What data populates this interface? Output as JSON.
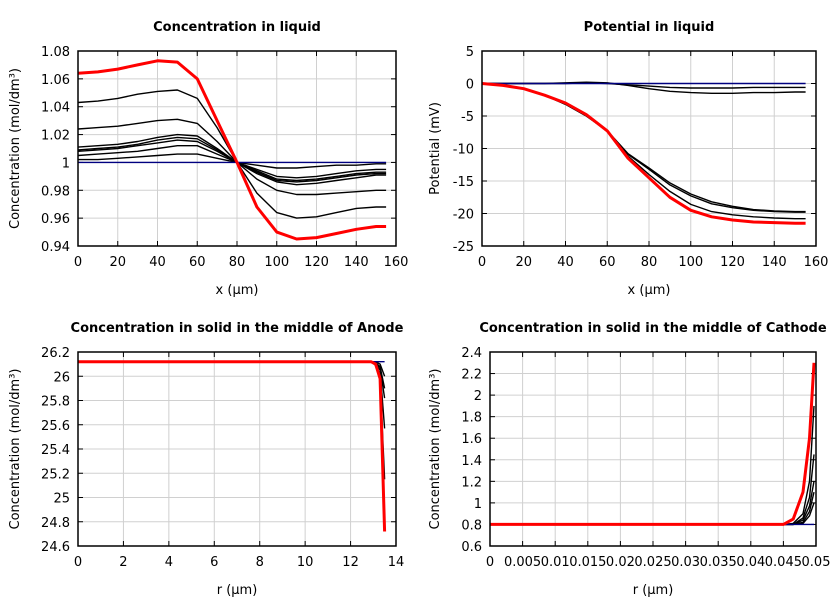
{
  "chart_data": [
    {
      "type": "line",
      "title": "Concentration in liquid",
      "xlabel": "x (µm)",
      "ylabel": "Concentration (mol/dm³)",
      "xlim": [
        0,
        160
      ],
      "ylim": [
        0.94,
        1.08
      ],
      "xticks": [
        "0",
        "20",
        "40",
        "60",
        "80",
        "100",
        "120",
        "140",
        "160"
      ],
      "yticks": [
        "0.94",
        "0.96",
        "0.98",
        "1",
        "1.02",
        "1.04",
        "1.06",
        "1.08"
      ],
      "grid": true,
      "x": [
        0,
        10,
        20,
        30,
        40,
        50,
        60,
        70,
        80,
        90,
        100,
        110,
        120,
        130,
        140,
        150,
        155
      ],
      "series": [
        {
          "color": "#000000",
          "values": [
            1.043,
            1.044,
            1.046,
            1.049,
            1.051,
            1.052,
            1.046,
            1.025,
            1.0,
            0.978,
            0.964,
            0.96,
            0.961,
            0.964,
            0.967,
            0.968,
            0.968
          ]
        },
        {
          "color": "#000000",
          "values": [
            1.024,
            1.025,
            1.026,
            1.028,
            1.03,
            1.031,
            1.028,
            1.015,
            1.0,
            0.988,
            0.98,
            0.977,
            0.977,
            0.978,
            0.979,
            0.98,
            0.98
          ]
        },
        {
          "color": "#000000",
          "values": [
            1.011,
            1.012,
            1.013,
            1.015,
            1.018,
            1.02,
            1.019,
            1.01,
            1.0,
            0.992,
            0.986,
            0.984,
            0.985,
            0.987,
            0.989,
            0.991,
            0.991
          ]
        },
        {
          "color": "#000000",
          "values": [
            1.009,
            1.01,
            1.011,
            1.013,
            1.016,
            1.018,
            1.017,
            1.009,
            1.0,
            0.993,
            0.987,
            0.986,
            0.987,
            0.989,
            0.991,
            0.992,
            0.992
          ]
        },
        {
          "color": "#000000",
          "values": [
            1.008,
            1.009,
            1.01,
            1.012,
            1.014,
            1.016,
            1.015,
            1.008,
            1.0,
            0.994,
            0.988,
            0.987,
            0.988,
            0.99,
            0.992,
            0.993,
            0.993
          ]
        },
        {
          "color": "#000000",
          "values": [
            1.005,
            1.006,
            1.007,
            1.008,
            1.01,
            1.012,
            1.012,
            1.006,
            1.0,
            0.995,
            0.99,
            0.989,
            0.99,
            0.992,
            0.994,
            0.995,
            0.995
          ]
        },
        {
          "color": "#000000",
          "values": [
            1.002,
            1.002,
            1.003,
            1.004,
            1.005,
            1.006,
            1.006,
            1.003,
            1.0,
            0.998,
            0.996,
            0.996,
            0.997,
            0.998,
            0.998,
            0.999,
            0.999
          ]
        },
        {
          "color": "#000080",
          "values": [
            1,
            1,
            1,
            1,
            1,
            1,
            1,
            1,
            1,
            1,
            1,
            1,
            1,
            1,
            1,
            1,
            1
          ]
        },
        {
          "color": "#ff0000",
          "values": [
            1.064,
            1.065,
            1.067,
            1.07,
            1.073,
            1.072,
            1.06,
            1.03,
            1.0,
            0.968,
            0.95,
            0.945,
            0.946,
            0.949,
            0.952,
            0.954,
            0.954
          ]
        }
      ]
    },
    {
      "type": "line",
      "title": "Potential in liquid",
      "xlabel": "x (µm)",
      "ylabel": "Potential (mV)",
      "xlim": [
        0,
        160
      ],
      "ylim": [
        -25,
        5
      ],
      "xticks": [
        "0",
        "20",
        "40",
        "60",
        "80",
        "100",
        "120",
        "140",
        "160"
      ],
      "yticks": [
        "-25",
        "-20",
        "-15",
        "-10",
        "-5",
        "0",
        "5"
      ],
      "grid": true,
      "x": [
        0,
        10,
        20,
        30,
        40,
        50,
        60,
        70,
        80,
        90,
        100,
        110,
        120,
        130,
        140,
        150,
        155
      ],
      "series": [
        {
          "color": "#000000",
          "values": [
            0,
            -0.3,
            -0.8,
            -1.8,
            -3.2,
            -5.0,
            -7.3,
            -10.8,
            -13.0,
            -15.3,
            -17.0,
            -18.2,
            -18.9,
            -19.4,
            -19.6,
            -19.7,
            -19.7
          ]
        },
        {
          "color": "#000000",
          "values": [
            0,
            -0.3,
            -0.8,
            -1.8,
            -3.2,
            -5.0,
            -7.3,
            -10.9,
            -13.2,
            -15.6,
            -17.3,
            -18.5,
            -19.1,
            -19.5,
            -19.7,
            -19.8,
            -19.8
          ]
        },
        {
          "color": "#000000",
          "values": [
            0,
            -0.3,
            -0.8,
            -1.8,
            -3.1,
            -4.9,
            -7.3,
            -11.2,
            -14.0,
            -16.6,
            -18.6,
            -19.7,
            -20.2,
            -20.5,
            -20.7,
            -20.8,
            -20.8
          ]
        },
        {
          "color": "#000000",
          "values": [
            0,
            0,
            0,
            0,
            0.1,
            0.2,
            0.1,
            -0.3,
            -0.8,
            -1.2,
            -1.4,
            -1.5,
            -1.5,
            -1.4,
            -1.4,
            -1.3,
            -1.3
          ]
        },
        {
          "color": "#000000",
          "values": [
            0,
            0,
            0,
            0,
            0,
            0.1,
            0,
            -0.2,
            -0.4,
            -0.6,
            -0.7,
            -0.7,
            -0.7,
            -0.6,
            -0.6,
            -0.6,
            -0.6
          ]
        },
        {
          "color": "#000080",
          "values": [
            0,
            0,
            0,
            0,
            0,
            0,
            0,
            0,
            0,
            0,
            0,
            0,
            0,
            0,
            0,
            0,
            0
          ]
        },
        {
          "color": "#ff0000",
          "values": [
            0,
            -0.3,
            -0.8,
            -1.8,
            -3.0,
            -4.8,
            -7.3,
            -11.5,
            -14.5,
            -17.5,
            -19.5,
            -20.5,
            -21.0,
            -21.3,
            -21.4,
            -21.5,
            -21.5
          ]
        }
      ]
    },
    {
      "type": "line",
      "title": "Concentration in solid in the middle of Anode",
      "xlabel": "r (µm)",
      "ylabel": "Concentration (mol/dm³)",
      "xlim": [
        0,
        14
      ],
      "ylim": [
        24.6,
        26.2
      ],
      "xticks": [
        "0",
        "2",
        "4",
        "6",
        "8",
        "10",
        "12",
        "14"
      ],
      "yticks": [
        "24.6",
        "24.8",
        "25",
        "25.2",
        "25.4",
        "25.6",
        "25.8",
        "26",
        "26.2"
      ],
      "grid": true,
      "x": [
        0,
        12.9,
        13.1,
        13.3,
        13.5
      ],
      "series": [
        {
          "color": "#000000",
          "values": [
            26.12,
            26.12,
            26.1,
            26.05,
            25.57
          ]
        },
        {
          "color": "#000000",
          "values": [
            26.12,
            26.12,
            26.11,
            26.07,
            25.82
          ]
        },
        {
          "color": "#000000",
          "values": [
            26.12,
            26.12,
            26.11,
            26.08,
            25.9
          ]
        },
        {
          "color": "#000000",
          "values": [
            26.12,
            26.12,
            26.12,
            26.1,
            26.0
          ]
        },
        {
          "color": "#000000",
          "values": [
            26.12,
            26.12,
            26.09,
            25.98,
            25.15
          ]
        },
        {
          "color": "#000080",
          "values": [
            26.12,
            26.12,
            26.12,
            26.12,
            26.12
          ]
        },
        {
          "color": "#ff0000",
          "values": [
            26.12,
            26.12,
            26.1,
            25.98,
            24.72
          ]
        }
      ]
    },
    {
      "type": "line",
      "title": "Concentration in solid in the middle of Cathode",
      "xlabel": "r (µm)",
      "ylabel": "Concentration (mol/dm³)",
      "xlim": [
        0,
        0.05
      ],
      "ylim": [
        0.6,
        2.4
      ],
      "xticks": [
        "0",
        "0.005",
        "0.01",
        "0.015",
        "0.02",
        "0.025",
        "0.03",
        "0.035",
        "0.04",
        "0.045",
        "0.05"
      ],
      "yticks": [
        "0.6",
        "0.8",
        "1",
        "1.2",
        "1.4",
        "1.6",
        "1.8",
        "2",
        "2.2",
        "2.4"
      ],
      "grid": true,
      "x": [
        0,
        0.045,
        0.0465,
        0.048,
        0.049,
        0.0497
      ],
      "series": [
        {
          "color": "#000000",
          "values": [
            0.8,
            0.8,
            0.81,
            0.9,
            1.2,
            1.9
          ]
        },
        {
          "color": "#000000",
          "values": [
            0.8,
            0.8,
            0.8,
            0.86,
            1.05,
            1.45
          ]
        },
        {
          "color": "#000000",
          "values": [
            0.8,
            0.8,
            0.8,
            0.84,
            0.97,
            1.2
          ]
        },
        {
          "color": "#000000",
          "values": [
            0.8,
            0.8,
            0.8,
            0.82,
            0.92,
            1.1
          ]
        },
        {
          "color": "#000000",
          "values": [
            0.8,
            0.8,
            0.8,
            0.81,
            0.88,
            1.0
          ]
        },
        {
          "color": "#000080",
          "values": [
            0.8,
            0.8,
            0.8,
            0.8,
            0.8,
            0.8
          ]
        },
        {
          "color": "#ff0000",
          "values": [
            0.8,
            0.8,
            0.85,
            1.1,
            1.6,
            2.3
          ]
        }
      ]
    }
  ]
}
